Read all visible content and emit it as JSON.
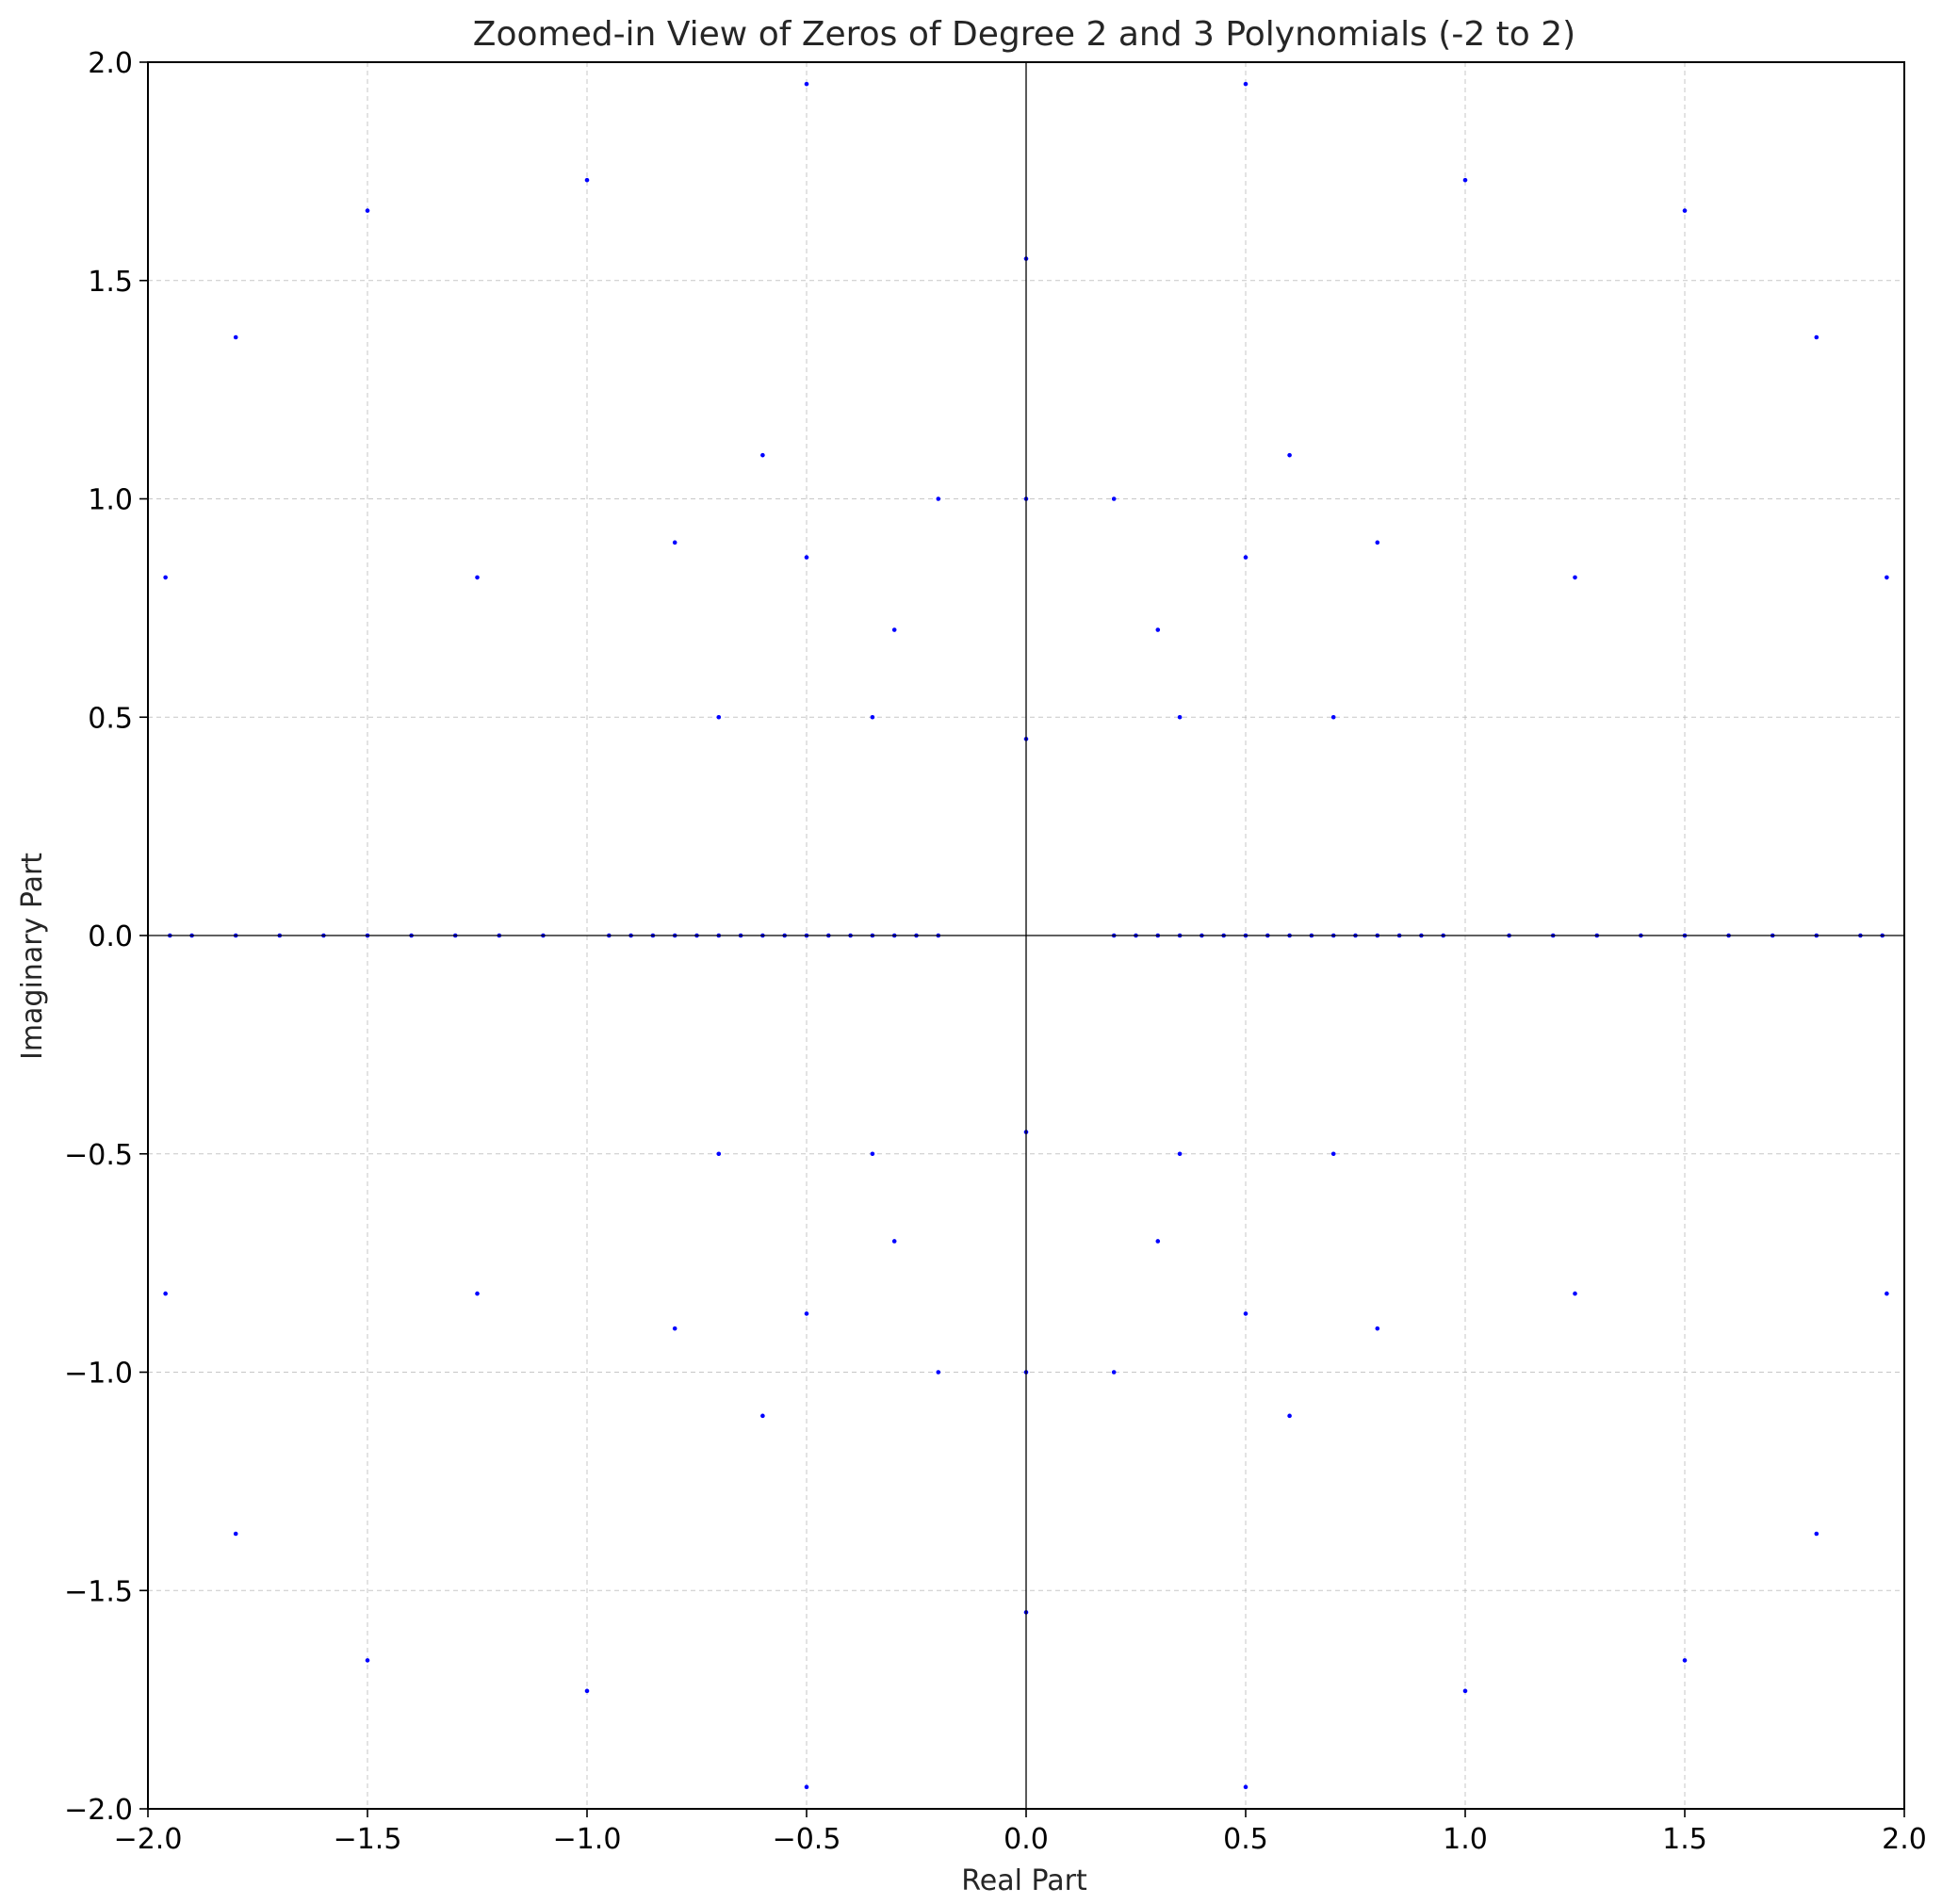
{
  "chart_data": {
    "type": "scatter",
    "title": "Zoomed-in View of Zeros of Degree 2 and 3 Polynomials (-2 to 2)",
    "xlabel": "Real Part",
    "ylabel": "Imaginary Part",
    "xlim": [
      -2,
      2
    ],
    "ylim": [
      -2,
      2
    ],
    "xticks": [
      -2.0,
      -1.5,
      -1.0,
      -0.5,
      0.0,
      0.5,
      1.0,
      1.5,
      2.0
    ],
    "yticks": [
      -2.0,
      -1.5,
      -1.0,
      -0.5,
      0.0,
      0.5,
      1.0,
      1.5,
      2.0
    ],
    "xtick_labels": [
      "−2.0",
      "−1.5",
      "−1.0",
      "−0.5",
      "0.0",
      "0.5",
      "1.0",
      "1.5",
      "2.0"
    ],
    "ytick_labels": [
      "−2.0",
      "−1.5",
      "−1.0",
      "−0.5",
      "0.0",
      "0.5",
      "1.0",
      "1.5",
      "2.0"
    ],
    "grid": true,
    "reference_lines": {
      "x": 0,
      "y": 0
    },
    "marker_color": "#0000ff",
    "series": [
      {
        "points": [
          [
            -0.5,
            0.866
          ],
          [
            0.5,
            0.866
          ],
          [
            -0.5,
            -0.866
          ],
          [
            0.5,
            -0.866
          ],
          [
            0,
            1
          ],
          [
            0,
            -1
          ],
          [
            -0.95,
            0.0
          ],
          [
            -0.9,
            0.0
          ],
          [
            -0.85,
            0.0
          ],
          [
            -0.8,
            0.0
          ],
          [
            -0.75,
            0.0
          ],
          [
            -0.7,
            0.0
          ],
          [
            -0.65,
            0.0
          ],
          [
            -0.6,
            0.0
          ],
          [
            -0.55,
            0.0
          ],
          [
            -0.5,
            0.0
          ],
          [
            -0.45,
            0.0
          ],
          [
            -0.4,
            0.0
          ],
          [
            -0.35,
            0.0
          ],
          [
            -0.3,
            0.0
          ],
          [
            -0.25,
            0.0
          ],
          [
            -0.2,
            0.0
          ],
          [
            0.2,
            0.0
          ],
          [
            0.25,
            0.0
          ],
          [
            0.3,
            0.0
          ],
          [
            0.35,
            0.0
          ],
          [
            0.4,
            0.0
          ],
          [
            0.45,
            0.0
          ],
          [
            0.5,
            0.0
          ],
          [
            0.55,
            0.0
          ],
          [
            0.6,
            0.0
          ],
          [
            0.65,
            0.0
          ],
          [
            0.7,
            0.0
          ],
          [
            0.75,
            0.0
          ],
          [
            0.8,
            0.0
          ],
          [
            0.85,
            0.0
          ],
          [
            0.9,
            0.0
          ],
          [
            0.95,
            0.0
          ],
          [
            -1.95,
            0.0
          ],
          [
            -1.9,
            0.0
          ],
          [
            -1.8,
            0.0
          ],
          [
            -1.7,
            0.0
          ],
          [
            -1.6,
            0.0
          ],
          [
            -1.5,
            0.0
          ],
          [
            -1.4,
            0.0
          ],
          [
            -1.3,
            0.0
          ],
          [
            -1.2,
            0.0
          ],
          [
            -1.1,
            0.0
          ],
          [
            1.1,
            0.0
          ],
          [
            1.2,
            0.0
          ],
          [
            1.3,
            0.0
          ],
          [
            1.4,
            0.0
          ],
          [
            1.5,
            0.0
          ],
          [
            1.6,
            0.0
          ],
          [
            1.7,
            0.0
          ],
          [
            1.8,
            0.0
          ],
          [
            1.9,
            0.0
          ],
          [
            1.95,
            0.0
          ],
          [
            -0.35,
            0.5
          ],
          [
            -0.3,
            0.7
          ],
          [
            -0.7,
            0.5
          ],
          [
            -0.6,
            1.1
          ],
          [
            -0.2,
            1.0
          ],
          [
            -0.8,
            0.9
          ],
          [
            0.35,
            0.5
          ],
          [
            0.3,
            0.7
          ],
          [
            0.7,
            0.5
          ],
          [
            0.6,
            1.1
          ],
          [
            0.2,
            1.0
          ],
          [
            0.8,
            0.9
          ],
          [
            -0.35,
            -0.5
          ],
          [
            -0.3,
            -0.7
          ],
          [
            -0.7,
            -0.5
          ],
          [
            -0.6,
            -1.1
          ],
          [
            -0.2,
            -1.0
          ],
          [
            -0.8,
            -0.9
          ],
          [
            0.35,
            -0.5
          ],
          [
            0.3,
            -0.7
          ],
          [
            0.7,
            -0.5
          ],
          [
            0.6,
            -1.1
          ],
          [
            0.2,
            -1.0
          ],
          [
            0.8,
            -0.9
          ],
          [
            -1.5,
            1.66
          ],
          [
            1.5,
            1.66
          ],
          [
            -1.5,
            -1.66
          ],
          [
            1.5,
            -1.66
          ],
          [
            -1.8,
            1.37
          ],
          [
            1.8,
            1.37
          ],
          [
            -1.8,
            -1.37
          ],
          [
            1.8,
            -1.37
          ],
          [
            -1.25,
            0.82
          ],
          [
            1.25,
            0.82
          ],
          [
            -1.25,
            -0.82
          ],
          [
            1.25,
            -0.82
          ],
          [
            -0.5,
            1.95
          ],
          [
            0.5,
            1.95
          ],
          [
            -0.5,
            -1.95
          ],
          [
            0.5,
            -1.95
          ],
          [
            -1.0,
            1.73
          ],
          [
            1.0,
            1.73
          ],
          [
            -1.0,
            -1.73
          ],
          [
            1.0,
            -1.73
          ],
          [
            -1.96,
            0.82
          ],
          [
            1.96,
            0.82
          ],
          [
            -1.96,
            -0.82
          ],
          [
            1.96,
            -0.82
          ],
          [
            0.0,
            1.55
          ],
          [
            0.0,
            -1.55
          ],
          [
            0.0,
            0.45
          ],
          [
            0.0,
            -0.45
          ]
        ]
      }
    ]
  }
}
